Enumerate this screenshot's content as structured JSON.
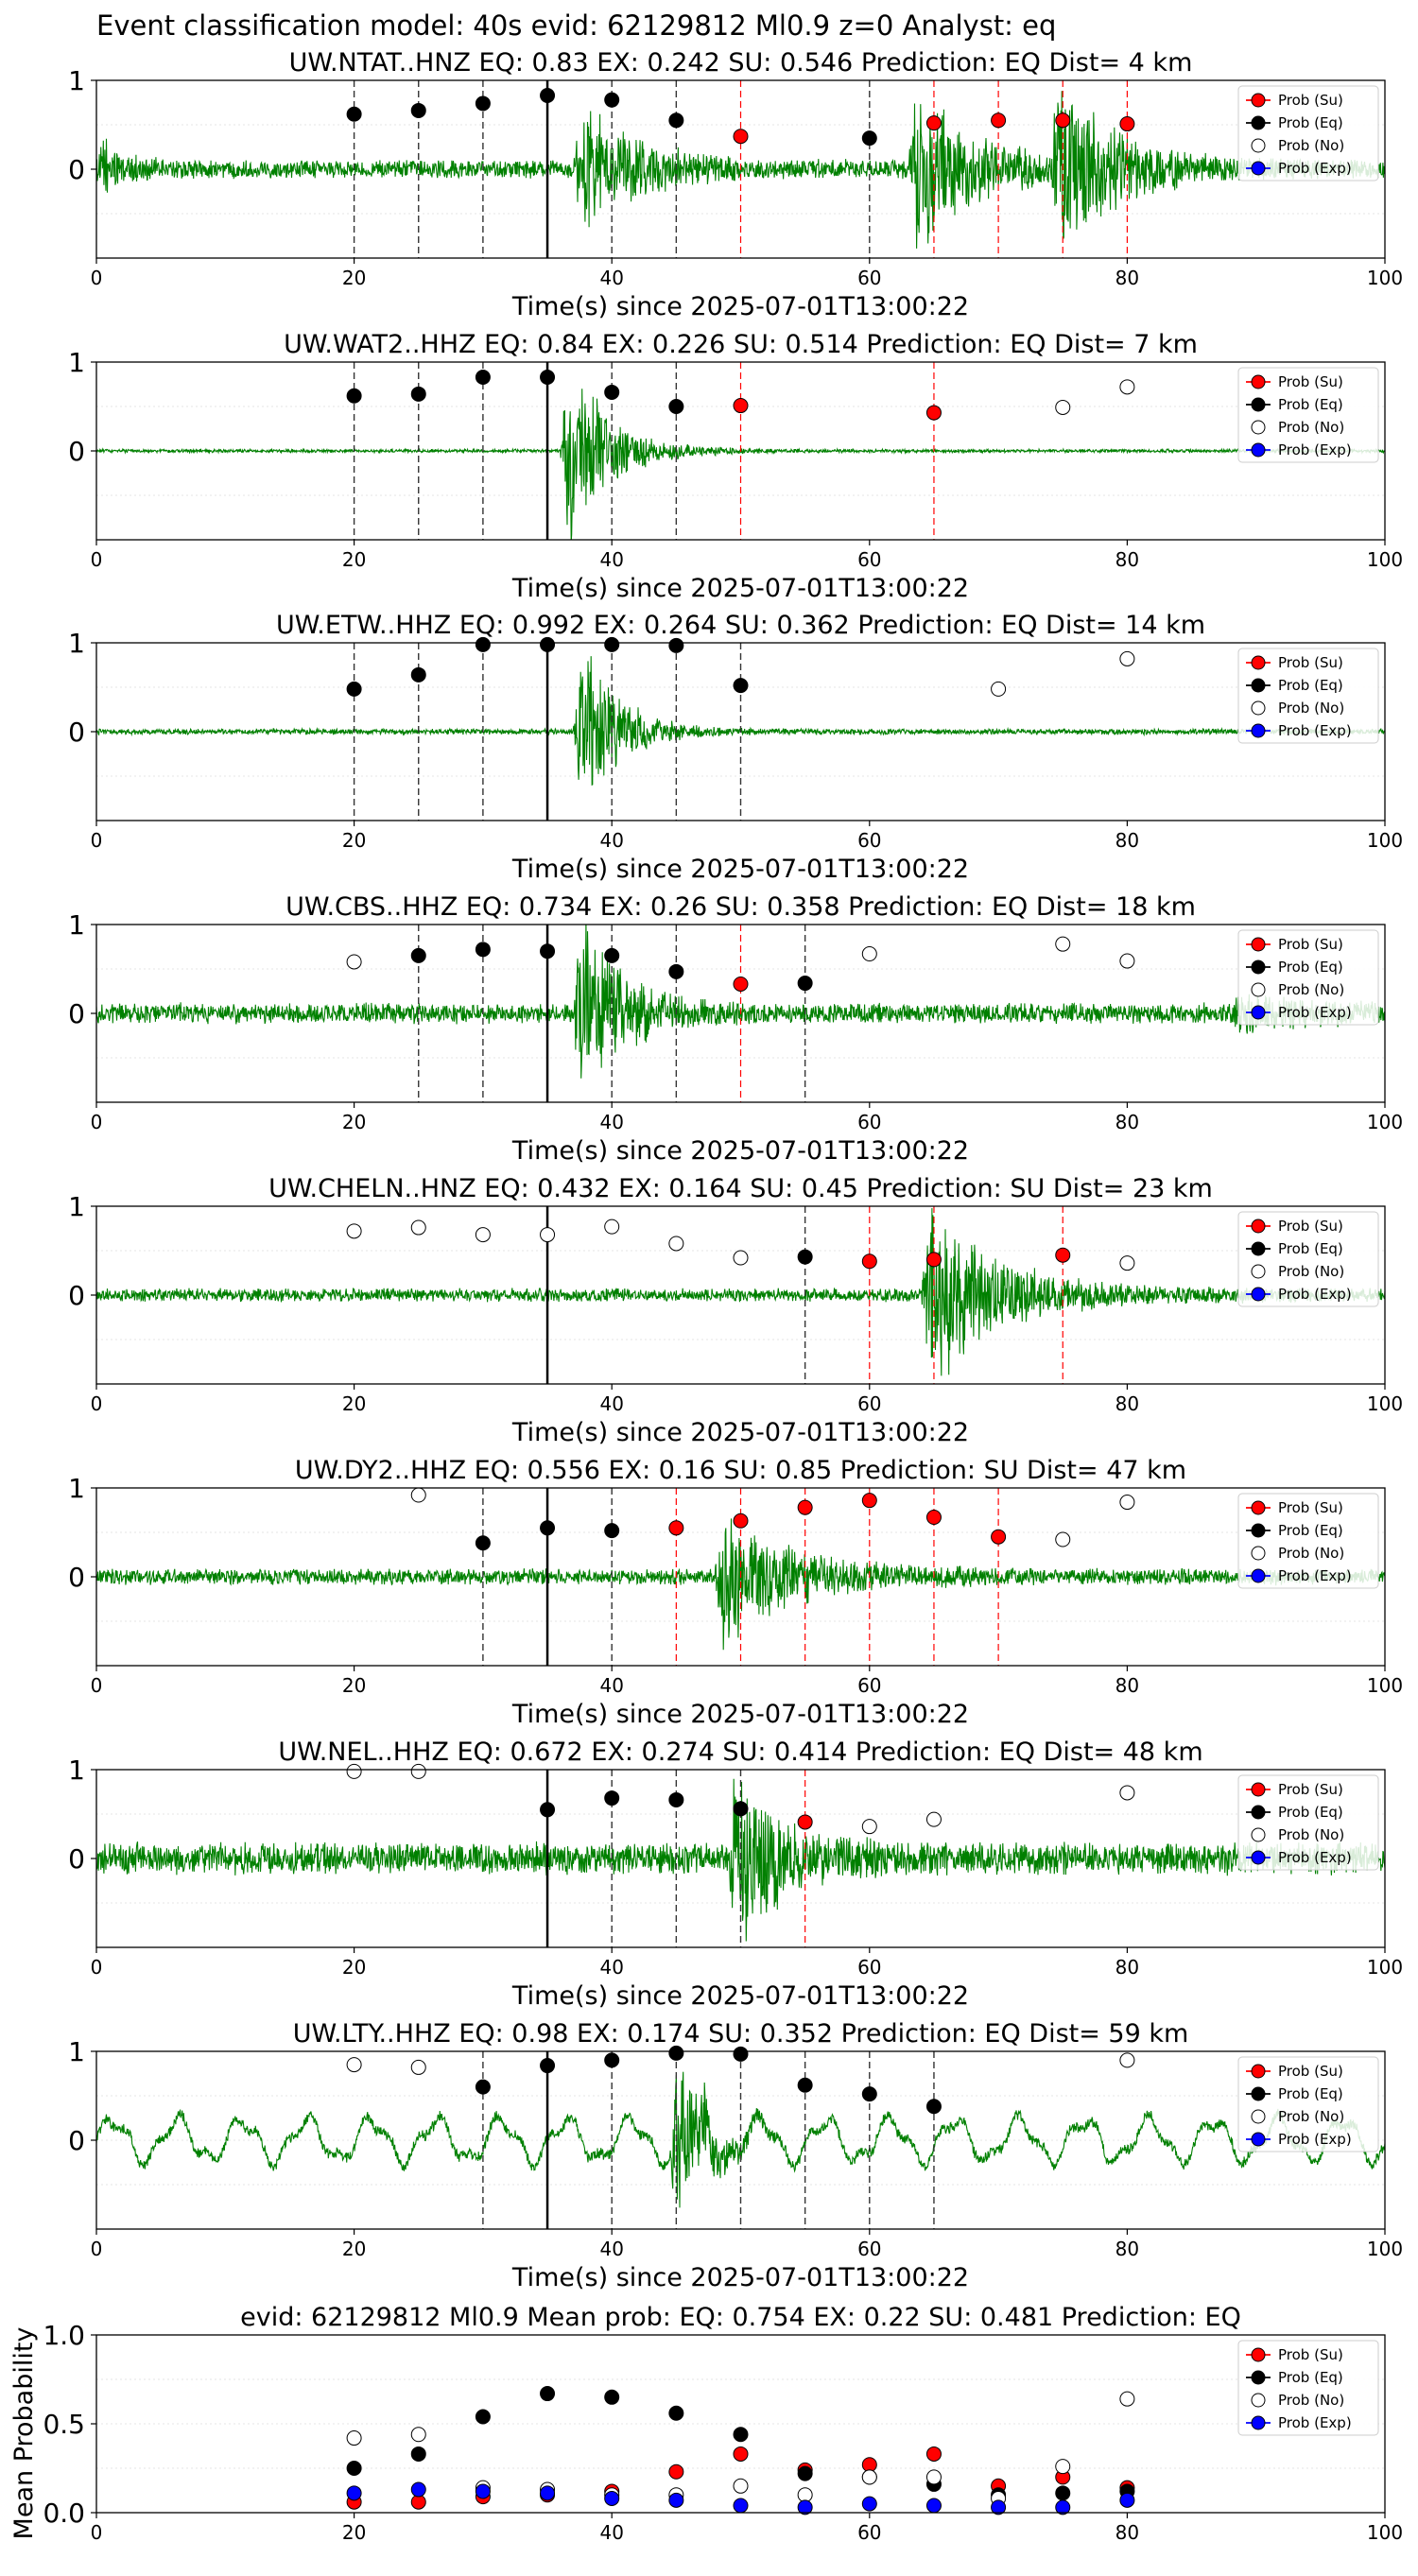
{
  "title": "Event classification model: 40s evid: 62129812 Ml0.9 z=0 Analyst: eq",
  "colors": {
    "trace": "#008000",
    "su": "#ff0000",
    "eq": "#000000",
    "no": "#ffffff",
    "exp": "#0000ff",
    "onset_line": "#000000",
    "eq_window_line": "#333333",
    "su_window_line": "#ff0000"
  },
  "legend": [
    "Prob (Su)",
    "Prob (Eq)",
    "Prob (No)",
    "Prob (Exp)"
  ],
  "chart_data": [
    {
      "type": "scatter",
      "title": "UW.NTAT..HNZ   EQ: 0.83  EX: 0.242  SU: 0.546   Prediction: EQ    Dist= 4 km",
      "xlabel": "Time(s) since 2025-07-01T13:00:22",
      "xlim": [
        0,
        100
      ],
      "ylim": [
        -1,
        1
      ],
      "xticks": [
        "0",
        "20",
        "40",
        "60",
        "80",
        "100"
      ],
      "yticks": [
        "1",
        "0"
      ],
      "onset": 35,
      "waveform": {
        "noise": 0.08,
        "bursts": [
          {
            "t": 0,
            "amp": 0.22,
            "dur": 4
          },
          {
            "t": 37,
            "amp": 0.55,
            "dur": 10
          },
          {
            "t": 63,
            "amp": 0.75,
            "dur": 10
          },
          {
            "t": 74,
            "amp": 0.7,
            "dur": 10
          }
        ]
      },
      "points": [
        {
          "x": 20,
          "y": 0.62,
          "cls": "eq"
        },
        {
          "x": 25,
          "y": 0.66,
          "cls": "eq"
        },
        {
          "x": 30,
          "y": 0.74,
          "cls": "eq"
        },
        {
          "x": 35,
          "y": 0.83,
          "cls": "eq"
        },
        {
          "x": 40,
          "y": 0.78,
          "cls": "eq"
        },
        {
          "x": 45,
          "y": 0.55,
          "cls": "eq"
        },
        {
          "x": 50,
          "y": 0.37,
          "cls": "su"
        },
        {
          "x": 60,
          "y": 0.35,
          "cls": "eq"
        },
        {
          "x": 65,
          "y": 0.52,
          "cls": "su"
        },
        {
          "x": 70,
          "y": 0.55,
          "cls": "su"
        },
        {
          "x": 75,
          "y": 0.55,
          "cls": "su"
        },
        {
          "x": 80,
          "y": 0.51,
          "cls": "su"
        }
      ]
    },
    {
      "type": "scatter",
      "title": "UW.WAT2..HHZ   EQ: 0.84  EX: 0.226  SU: 0.514   Prediction: EQ    Dist= 7 km",
      "xlabel": "Time(s) since 2025-07-01T13:00:22",
      "xlim": [
        0,
        100
      ],
      "ylim": [
        -1,
        1
      ],
      "xticks": [
        "0",
        "20",
        "40",
        "60",
        "80",
        "100"
      ],
      "yticks": [
        "1",
        "0"
      ],
      "onset": 35,
      "waveform": {
        "noise": 0.015,
        "bursts": [
          {
            "t": 36,
            "amp": 0.85,
            "dur": 7
          }
        ]
      },
      "points": [
        {
          "x": 20,
          "y": 0.62,
          "cls": "eq"
        },
        {
          "x": 25,
          "y": 0.64,
          "cls": "eq"
        },
        {
          "x": 30,
          "y": 0.83,
          "cls": "eq"
        },
        {
          "x": 35,
          "y": 0.83,
          "cls": "eq"
        },
        {
          "x": 40,
          "y": 0.66,
          "cls": "eq"
        },
        {
          "x": 45,
          "y": 0.5,
          "cls": "eq"
        },
        {
          "x": 50,
          "y": 0.51,
          "cls": "su"
        },
        {
          "x": 65,
          "y": 0.43,
          "cls": "su"
        },
        {
          "x": 75,
          "y": 0.49,
          "cls": "no"
        },
        {
          "x": 80,
          "y": 0.72,
          "cls": "no"
        }
      ]
    },
    {
      "type": "scatter",
      "title": "UW.ETW..HHZ   EQ: 0.992  EX: 0.264  SU: 0.362   Prediction: EQ    Dist= 14 km",
      "xlabel": "Time(s) since 2025-07-01T13:00:22",
      "xlim": [
        0,
        100
      ],
      "ylim": [
        -1,
        1
      ],
      "xticks": [
        "0",
        "20",
        "40",
        "60",
        "80",
        "100"
      ],
      "yticks": [
        "1",
        "0"
      ],
      "onset": 35,
      "waveform": {
        "noise": 0.025,
        "bursts": [
          {
            "t": 37,
            "amp": 0.9,
            "dur": 6
          }
        ]
      },
      "points": [
        {
          "x": 20,
          "y": 0.48,
          "cls": "eq"
        },
        {
          "x": 25,
          "y": 0.64,
          "cls": "eq"
        },
        {
          "x": 30,
          "y": 0.98,
          "cls": "eq"
        },
        {
          "x": 35,
          "y": 0.98,
          "cls": "eq"
        },
        {
          "x": 40,
          "y": 0.98,
          "cls": "eq"
        },
        {
          "x": 45,
          "y": 0.97,
          "cls": "eq"
        },
        {
          "x": 50,
          "y": 0.52,
          "cls": "eq"
        },
        {
          "x": 70,
          "y": 0.48,
          "cls": "no"
        },
        {
          "x": 80,
          "y": 0.82,
          "cls": "no"
        }
      ]
    },
    {
      "type": "scatter",
      "title": "UW.CBS..HHZ   EQ: 0.734  EX: 0.26  SU: 0.358   Prediction: EQ    Dist= 18 km",
      "xlabel": "Time(s) since 2025-07-01T13:00:22",
      "xlim": [
        0,
        100
      ],
      "ylim": [
        -1,
        1
      ],
      "xticks": [
        "0",
        "20",
        "40",
        "60",
        "80",
        "100"
      ],
      "yticks": [
        "1",
        "0"
      ],
      "onset": 35,
      "waveform": {
        "noise": 0.09,
        "bursts": [
          {
            "t": 37,
            "amp": 0.85,
            "dur": 7
          },
          {
            "t": 88,
            "amp": 0.12,
            "dur": 12
          }
        ]
      },
      "points": [
        {
          "x": 20,
          "y": 0.58,
          "cls": "no"
        },
        {
          "x": 25,
          "y": 0.65,
          "cls": "eq"
        },
        {
          "x": 30,
          "y": 0.72,
          "cls": "eq"
        },
        {
          "x": 35,
          "y": 0.7,
          "cls": "eq"
        },
        {
          "x": 40,
          "y": 0.65,
          "cls": "eq"
        },
        {
          "x": 45,
          "y": 0.47,
          "cls": "eq"
        },
        {
          "x": 50,
          "y": 0.33,
          "cls": "su"
        },
        {
          "x": 55,
          "y": 0.34,
          "cls": "eq"
        },
        {
          "x": 60,
          "y": 0.67,
          "cls": "no"
        },
        {
          "x": 75,
          "y": 0.78,
          "cls": "no"
        },
        {
          "x": 80,
          "y": 0.59,
          "cls": "no"
        }
      ]
    },
    {
      "type": "scatter",
      "title": "UW.CHELN..HNZ   EQ: 0.432  EX: 0.164  SU: 0.45   Prediction: SU    Dist= 23 km",
      "xlabel": "Time(s) since 2025-07-01T13:00:22",
      "xlim": [
        0,
        100
      ],
      "ylim": [
        -1,
        1
      ],
      "xticks": [
        "0",
        "20",
        "40",
        "60",
        "80",
        "100"
      ],
      "yticks": [
        "1",
        "0"
      ],
      "onset": 35,
      "waveform": {
        "noise": 0.06,
        "bursts": [
          {
            "t": 64,
            "amp": 0.8,
            "dur": 12
          }
        ]
      },
      "points": [
        {
          "x": 20,
          "y": 0.72,
          "cls": "no"
        },
        {
          "x": 25,
          "y": 0.76,
          "cls": "no"
        },
        {
          "x": 30,
          "y": 0.68,
          "cls": "no"
        },
        {
          "x": 35,
          "y": 0.68,
          "cls": "no"
        },
        {
          "x": 40,
          "y": 0.77,
          "cls": "no"
        },
        {
          "x": 45,
          "y": 0.58,
          "cls": "no"
        },
        {
          "x": 50,
          "y": 0.42,
          "cls": "no"
        },
        {
          "x": 55,
          "y": 0.43,
          "cls": "eq"
        },
        {
          "x": 60,
          "y": 0.38,
          "cls": "su"
        },
        {
          "x": 65,
          "y": 0.4,
          "cls": "su"
        },
        {
          "x": 75,
          "y": 0.45,
          "cls": "su"
        },
        {
          "x": 80,
          "y": 0.36,
          "cls": "no"
        }
      ]
    },
    {
      "type": "scatter",
      "title": "UW.DY2..HHZ   EQ: 0.556  EX: 0.16  SU: 0.85   Prediction: SU    Dist= 47 km",
      "xlabel": "Time(s) since 2025-07-01T13:00:22",
      "xlim": [
        0,
        100
      ],
      "ylim": [
        -1,
        1
      ],
      "xticks": [
        "0",
        "20",
        "40",
        "60",
        "80",
        "100"
      ],
      "yticks": [
        "1",
        "0"
      ],
      "onset": 35,
      "waveform": {
        "noise": 0.07,
        "bursts": [
          {
            "t": 48,
            "amp": 0.6,
            "dur": 12
          }
        ]
      },
      "points": [
        {
          "x": 25,
          "y": 0.92,
          "cls": "no"
        },
        {
          "x": 30,
          "y": 0.38,
          "cls": "eq"
        },
        {
          "x": 35,
          "y": 0.55,
          "cls": "eq"
        },
        {
          "x": 40,
          "y": 0.52,
          "cls": "eq"
        },
        {
          "x": 45,
          "y": 0.55,
          "cls": "su"
        },
        {
          "x": 50,
          "y": 0.63,
          "cls": "su"
        },
        {
          "x": 55,
          "y": 0.78,
          "cls": "su"
        },
        {
          "x": 60,
          "y": 0.86,
          "cls": "su"
        },
        {
          "x": 65,
          "y": 0.67,
          "cls": "su"
        },
        {
          "x": 70,
          "y": 0.45,
          "cls": "su"
        },
        {
          "x": 75,
          "y": 0.42,
          "cls": "no"
        },
        {
          "x": 80,
          "y": 0.84,
          "cls": "no"
        }
      ]
    },
    {
      "type": "scatter",
      "title": "UW.NEL..HHZ   EQ: 0.672  EX: 0.274  SU: 0.414   Prediction: EQ    Dist= 48 km",
      "xlabel": "Time(s) since 2025-07-01T13:00:22",
      "xlim": [
        0,
        100
      ],
      "ylim": [
        -1,
        1
      ],
      "xticks": [
        "0",
        "20",
        "40",
        "60",
        "80",
        "100"
      ],
      "yticks": [
        "1",
        "0"
      ],
      "onset": 35,
      "waveform": {
        "noise": 0.14,
        "bursts": [
          {
            "t": 49,
            "amp": 0.75,
            "dur": 8
          }
        ]
      },
      "points": [
        {
          "x": 20,
          "y": 0.98,
          "cls": "no"
        },
        {
          "x": 25,
          "y": 0.98,
          "cls": "no"
        },
        {
          "x": 35,
          "y": 0.55,
          "cls": "eq"
        },
        {
          "x": 40,
          "y": 0.68,
          "cls": "eq"
        },
        {
          "x": 45,
          "y": 0.66,
          "cls": "eq"
        },
        {
          "x": 50,
          "y": 0.56,
          "cls": "eq"
        },
        {
          "x": 55,
          "y": 0.41,
          "cls": "su"
        },
        {
          "x": 60,
          "y": 0.36,
          "cls": "no"
        },
        {
          "x": 65,
          "y": 0.44,
          "cls": "no"
        },
        {
          "x": 80,
          "y": 0.74,
          "cls": "no"
        }
      ]
    },
    {
      "type": "scatter",
      "title": "UW.LTY..HHZ   EQ: 0.98  EX: 0.174  SU: 0.352   Prediction: EQ    Dist= 59 km",
      "xlabel": "Time(s) since 2025-07-01T13:00:22",
      "xlim": [
        0,
        100
      ],
      "ylim": [
        -1,
        1
      ],
      "xticks": [
        "0",
        "20",
        "40",
        "60",
        "80",
        "100"
      ],
      "yticks": [
        "1",
        "0"
      ],
      "onset": 35,
      "waveform": {
        "noise": 0.05,
        "swell": 0.22,
        "bursts": [
          {
            "t": 44.5,
            "amp": 0.9,
            "dur": 4
          }
        ]
      },
      "points": [
        {
          "x": 20,
          "y": 0.85,
          "cls": "no"
        },
        {
          "x": 25,
          "y": 0.82,
          "cls": "no"
        },
        {
          "x": 30,
          "y": 0.6,
          "cls": "eq"
        },
        {
          "x": 35,
          "y": 0.84,
          "cls": "eq"
        },
        {
          "x": 40,
          "y": 0.9,
          "cls": "eq"
        },
        {
          "x": 45,
          "y": 0.98,
          "cls": "eq"
        },
        {
          "x": 50,
          "y": 0.97,
          "cls": "eq"
        },
        {
          "x": 55,
          "y": 0.62,
          "cls": "eq"
        },
        {
          "x": 60,
          "y": 0.52,
          "cls": "eq"
        },
        {
          "x": 65,
          "y": 0.38,
          "cls": "eq"
        },
        {
          "x": 80,
          "y": 0.9,
          "cls": "no"
        }
      ]
    },
    {
      "type": "scatter",
      "title": "evid: 62129812  Ml0.9   Mean prob:   EQ: 0.754  EX: 0.22  SU: 0.481   Prediction: EQ",
      "ylabel": "Mean Probability",
      "xlim": [
        0,
        100
      ],
      "ylim": [
        0,
        1
      ],
      "xticks": [
        "0",
        "20",
        "40",
        "60",
        "80",
        "100"
      ],
      "yticks": [
        "0.0",
        "0.5",
        "1.0"
      ],
      "series": [
        {
          "name": "Prob (Su)",
          "cls": "su",
          "x": [
            20,
            25,
            30,
            35,
            40,
            45,
            50,
            55,
            60,
            65,
            70,
            75,
            80
          ],
          "y": [
            0.06,
            0.06,
            0.09,
            0.1,
            0.12,
            0.23,
            0.33,
            0.24,
            0.27,
            0.33,
            0.15,
            0.2,
            0.14
          ]
        },
        {
          "name": "Prob (Eq)",
          "cls": "eq",
          "x": [
            20,
            25,
            30,
            35,
            40,
            45,
            50,
            55,
            60,
            65,
            70,
            75,
            80
          ],
          "y": [
            0.25,
            0.33,
            0.54,
            0.67,
            0.65,
            0.56,
            0.44,
            0.22,
            0.2,
            0.16,
            0.1,
            0.11,
            0.12
          ]
        },
        {
          "name": "Prob (No)",
          "cls": "no",
          "x": [
            20,
            25,
            30,
            35,
            40,
            45,
            50,
            55,
            60,
            65,
            70,
            75,
            80
          ],
          "y": [
            0.42,
            0.44,
            0.14,
            0.13,
            0.1,
            0.1,
            0.15,
            0.1,
            0.2,
            0.2,
            0.08,
            0.26,
            0.64
          ]
        },
        {
          "name": "Prob (Exp)",
          "cls": "exp",
          "x": [
            20,
            25,
            30,
            35,
            40,
            45,
            50,
            55,
            60,
            65,
            70,
            75,
            80
          ],
          "y": [
            0.11,
            0.13,
            0.12,
            0.11,
            0.08,
            0.07,
            0.04,
            0.03,
            0.05,
            0.04,
            0.03,
            0.03,
            0.07
          ]
        }
      ]
    }
  ]
}
